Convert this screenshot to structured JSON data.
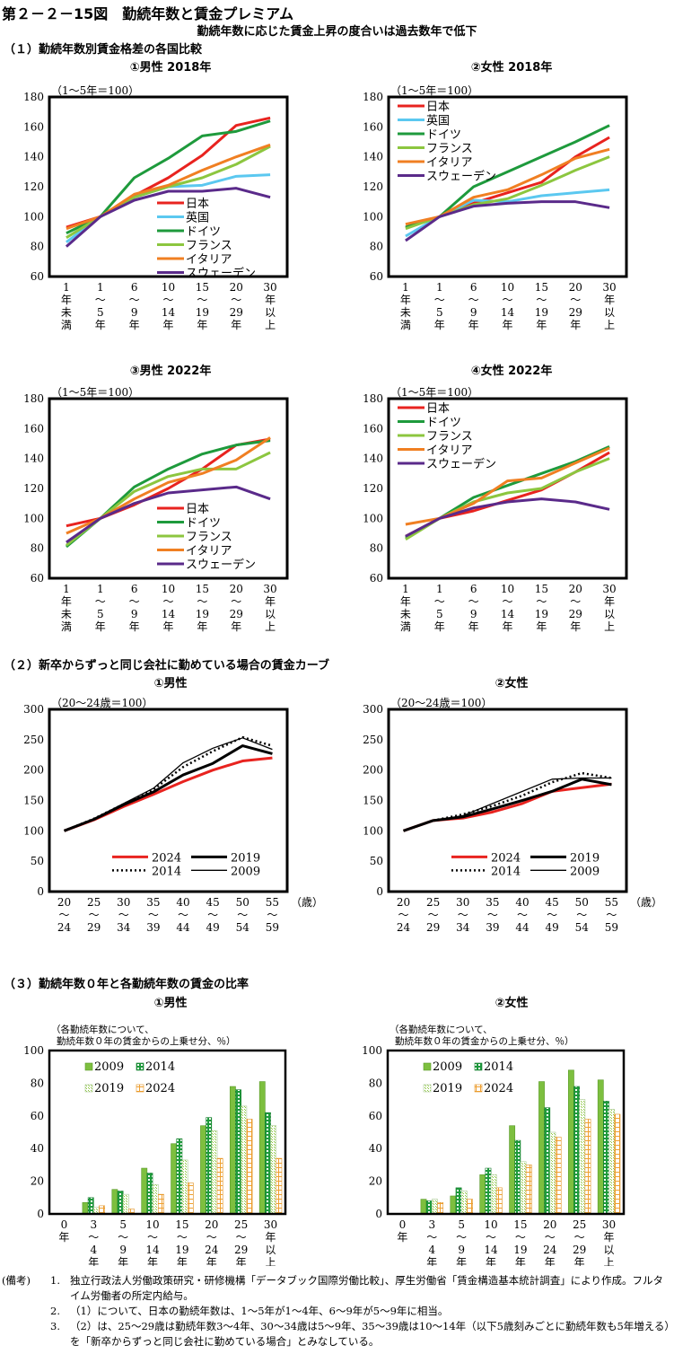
{
  "figure": {
    "title": "第２－２－15図　勤続年数と賃金プレミアム",
    "subtitle": "勤続年数に応じた賃金上昇の度合いは過去数年で低下"
  },
  "sections": {
    "s1": "（１）勤続年数別賃金格差の各国比較",
    "s2": "（２）新卒からずっと同じ会社に勤めている場合の賃金カーブ",
    "s3": "（３）勤続年数０年と各勤続年数の賃金の比率"
  },
  "notes": {
    "label": "(備考)",
    "items": [
      {
        "num": "1.",
        "text": "独立行政法人労働政策研究・研修機構「データブック国際労働比較」、厚生労働省「賃金構造基本統計調査」により作成。フルタイム労働者の所定内給与。"
      },
      {
        "num": "2.",
        "text": "（1）について、日本の勤続年数は、1～5年が1～4年、6～9年が5～9年に相当。"
      },
      {
        "num": "3.",
        "text": "（2）は、25～29歳は勤続年数3～4年、30～34歳は5～9年、35～39歳は10～14年（以下5歳刻みごとに勤続年数も5年増える）を「新卒からずっと同じ会社に勤めている場合」とみなしている。"
      }
    ]
  },
  "colors": {
    "japan": "#e8231f",
    "uk": "#5bc8f0",
    "germany": "#1e9a3c",
    "france": "#8cc63f",
    "italy": "#f07f22",
    "sweden": "#5a2a8a",
    "bar2009": "#7dbf3f",
    "bar2014": "#1e9a3c",
    "bar2019": "#c8e6a8",
    "bar2024": "#f0a030"
  },
  "chart_data": [
    {
      "id": "c1",
      "type": "line",
      "title": "①男性 2018年",
      "unit_label": "（1～5年＝100）",
      "ylim": [
        60,
        180
      ],
      "yticks": [
        "60",
        "80",
        "100",
        "120",
        "140",
        "160",
        "180"
      ],
      "categories": [
        [
          "1",
          "年",
          "未",
          "満"
        ],
        [
          "1",
          "～",
          "5",
          "年"
        ],
        [
          "6",
          "～",
          "9",
          "年"
        ],
        [
          "10",
          "～",
          "14",
          "年"
        ],
        [
          "15",
          "～",
          "19",
          "年"
        ],
        [
          "20",
          "～",
          "29",
          "年"
        ],
        [
          "30",
          "年",
          "以",
          "上"
        ]
      ],
      "legend_position": "lower-right",
      "series": [
        {
          "name": "日本",
          "color_key": "japan",
          "values": [
            93,
            100,
            114,
            126,
            141,
            161,
            166
          ]
        },
        {
          "name": "英国",
          "color_key": "uk",
          "values": [
            83,
            100,
            113,
            120,
            121,
            127,
            128
          ]
        },
        {
          "name": "ドイツ",
          "color_key": "germany",
          "values": [
            89,
            100,
            126,
            139,
            154,
            157,
            164
          ]
        },
        {
          "name": "フランス",
          "color_key": "france",
          "values": [
            86,
            100,
            113,
            120,
            126,
            135,
            147
          ]
        },
        {
          "name": "イタリア",
          "color_key": "italy",
          "values": [
            92,
            100,
            115,
            121,
            131,
            140,
            148
          ]
        },
        {
          "name": "スウェーデン",
          "color_key": "sweden",
          "values": [
            80,
            100,
            111,
            117,
            117,
            119,
            113
          ]
        }
      ]
    },
    {
      "id": "c2",
      "type": "line",
      "title": "②女性 2018年",
      "unit_label": "（1～5年＝100）",
      "ylim": [
        60,
        180
      ],
      "yticks": [
        "60",
        "80",
        "100",
        "120",
        "140",
        "160",
        "180"
      ],
      "categories": [
        [
          "1",
          "年",
          "未",
          "満"
        ],
        [
          "1",
          "～",
          "5",
          "年"
        ],
        [
          "6",
          "～",
          "9",
          "年"
        ],
        [
          "10",
          "～",
          "14",
          "年"
        ],
        [
          "15",
          "～",
          "19",
          "年"
        ],
        [
          "20",
          "～",
          "29",
          "年"
        ],
        [
          "30",
          "年",
          "以",
          "上"
        ]
      ],
      "legend_position": "top-left",
      "series": [
        {
          "name": "日本",
          "color_key": "japan",
          "values": [
            93,
            100,
            109,
            116,
            123,
            140,
            153
          ]
        },
        {
          "name": "英国",
          "color_key": "uk",
          "values": [
            87,
            100,
            111,
            110,
            114,
            116,
            118
          ]
        },
        {
          "name": "ドイツ",
          "color_key": "germany",
          "values": [
            93,
            100,
            120,
            130,
            140,
            150,
            161
          ]
        },
        {
          "name": "フランス",
          "color_key": "france",
          "values": [
            92,
            100,
            108,
            112,
            121,
            131,
            140
          ]
        },
        {
          "name": "イタリア",
          "color_key": "italy",
          "values": [
            95,
            100,
            113,
            118,
            128,
            139,
            145
          ]
        },
        {
          "name": "スウェーデン",
          "color_key": "sweden",
          "values": [
            84,
            100,
            107,
            109,
            110,
            110,
            106
          ]
        }
      ]
    },
    {
      "id": "c3",
      "type": "line",
      "title": "③男性 2022年",
      "unit_label": "（1～5年＝100）",
      "ylim": [
        60,
        180
      ],
      "yticks": [
        "60",
        "80",
        "100",
        "120",
        "140",
        "160",
        "180"
      ],
      "categories": [
        [
          "1",
          "年",
          "未",
          "満"
        ],
        [
          "1",
          "～",
          "5",
          "年"
        ],
        [
          "6",
          "～",
          "9",
          "年"
        ],
        [
          "10",
          "～",
          "14",
          "年"
        ],
        [
          "15",
          "～",
          "19",
          "年"
        ],
        [
          "20",
          "～",
          "29",
          "年"
        ],
        [
          "30",
          "年",
          "以",
          "上"
        ]
      ],
      "legend_position": "lower-right",
      "series": [
        {
          "name": "日本",
          "color_key": "japan",
          "values": [
            95,
            100,
            109,
            120,
            133,
            149,
            153
          ]
        },
        {
          "name": "ドイツ",
          "color_key": "germany",
          "values": [
            81,
            100,
            121,
            133,
            143,
            149,
            152
          ]
        },
        {
          "name": "フランス",
          "color_key": "france",
          "values": [
            82,
            100,
            118,
            128,
            133,
            133,
            144
          ]
        },
        {
          "name": "イタリア",
          "color_key": "italy",
          "values": [
            90,
            100,
            113,
            124,
            130,
            139,
            154
          ]
        },
        {
          "name": "スウェーデン",
          "color_key": "sweden",
          "values": [
            84,
            100,
            110,
            117,
            119,
            121,
            113
          ]
        }
      ]
    },
    {
      "id": "c4",
      "type": "line",
      "title": "④女性 2022年",
      "unit_label": "（1～5年＝100）",
      "ylim": [
        60,
        180
      ],
      "yticks": [
        "60",
        "80",
        "100",
        "120",
        "140",
        "160",
        "180"
      ],
      "categories": [
        [
          "1",
          "年",
          "未",
          "満"
        ],
        [
          "1",
          "～",
          "5",
          "年"
        ],
        [
          "6",
          "～",
          "9",
          "年"
        ],
        [
          "10",
          "～",
          "14",
          "年"
        ],
        [
          "15",
          "～",
          "19",
          "年"
        ],
        [
          "20",
          "～",
          "29",
          "年"
        ],
        [
          "30",
          "年",
          "以",
          "上"
        ]
      ],
      "legend_position": "top-left",
      "series": [
        {
          "name": "日本",
          "color_key": "japan",
          "values": [
            88,
            100,
            105,
            112,
            119,
            131,
            144
          ]
        },
        {
          "name": "ドイツ",
          "color_key": "germany",
          "values": [
            87,
            100,
            114,
            122,
            130,
            138,
            148
          ]
        },
        {
          "name": "フランス",
          "color_key": "france",
          "values": [
            86,
            100,
            111,
            117,
            120,
            131,
            140
          ]
        },
        {
          "name": "イタリア",
          "color_key": "italy",
          "values": [
            96,
            100,
            110,
            125,
            127,
            137,
            147
          ]
        },
        {
          "name": "スウェーデン",
          "color_key": "sweden",
          "values": [
            88,
            100,
            107,
            111,
            113,
            111,
            106
          ]
        }
      ]
    },
    {
      "id": "c5",
      "type": "line",
      "title": "①男性",
      "unit_label": "（20～24歳＝100）",
      "xunit": "（歳）",
      "ylim": [
        0,
        300
      ],
      "yticks": [
        "0",
        "50",
        "100",
        "150",
        "200",
        "250",
        "300"
      ],
      "categories": [
        [
          "20",
          "～",
          "24"
        ],
        [
          "25",
          "～",
          "29"
        ],
        [
          "30",
          "～",
          "34"
        ],
        [
          "35",
          "～",
          "39"
        ],
        [
          "40",
          "～",
          "44"
        ],
        [
          "45",
          "～",
          "49"
        ],
        [
          "50",
          "～",
          "54"
        ],
        [
          "55",
          "～",
          "59"
        ]
      ],
      "legend_position": "lower-center",
      "series": [
        {
          "name": "2024",
          "style": "red",
          "values": [
            100,
            118,
            140,
            160,
            181,
            200,
            215,
            220
          ]
        },
        {
          "name": "2019",
          "style": "thick",
          "values": [
            100,
            119,
            143,
            164,
            192,
            211,
            240,
            227
          ]
        },
        {
          "name": "2014",
          "style": "dotted",
          "values": [
            100,
            120,
            144,
            168,
            205,
            231,
            254,
            240
          ]
        },
        {
          "name": "2009",
          "style": "thin",
          "values": [
            100,
            120,
            145,
            170,
            212,
            236,
            253,
            234
          ]
        }
      ]
    },
    {
      "id": "c6",
      "type": "line",
      "title": "②女性",
      "unit_label": "（20～24歳＝100）",
      "xunit": "（歳）",
      "ylim": [
        0,
        300
      ],
      "yticks": [
        "0",
        "50",
        "100",
        "150",
        "200",
        "250",
        "300"
      ],
      "categories": [
        [
          "20",
          "～",
          "24"
        ],
        [
          "25",
          "～",
          "29"
        ],
        [
          "30",
          "～",
          "34"
        ],
        [
          "35",
          "～",
          "39"
        ],
        [
          "40",
          "～",
          "44"
        ],
        [
          "45",
          "～",
          "49"
        ],
        [
          "50",
          "～",
          "54"
        ],
        [
          "55",
          "～",
          "59"
        ]
      ],
      "legend_position": "lower-center",
      "series": [
        {
          "name": "2024",
          "style": "red",
          "values": [
            100,
            117,
            121,
            131,
            145,
            165,
            171,
            177
          ]
        },
        {
          "name": "2019",
          "style": "thick",
          "values": [
            100,
            117,
            123,
            136,
            150,
            165,
            185,
            176
          ]
        },
        {
          "name": "2014",
          "style": "dotted",
          "values": [
            100,
            117,
            127,
            141,
            158,
            180,
            195,
            187
          ]
        },
        {
          "name": "2009",
          "style": "thin",
          "values": [
            100,
            117,
            125,
            145,
            165,
            185,
            187,
            187
          ]
        }
      ]
    },
    {
      "id": "c7",
      "type": "bar",
      "title": "①男性",
      "unit_label": [
        "（各勤続年数について、",
        "勤続年数０年の賃金からの上乗せ分、％）"
      ],
      "ylim": [
        0,
        100
      ],
      "yticks": [
        "0",
        "20",
        "40",
        "60",
        "80",
        "100"
      ],
      "categories": [
        [
          "0",
          "年"
        ],
        [
          "3",
          "～",
          "4",
          "年"
        ],
        [
          "5",
          "～",
          "9",
          "年"
        ],
        [
          "10",
          "～",
          "14",
          "年"
        ],
        [
          "15",
          "～",
          "19",
          "年"
        ],
        [
          "20",
          "～",
          "24",
          "年"
        ],
        [
          "25",
          "～",
          "29",
          "年"
        ],
        [
          "30",
          "年",
          "以",
          "上"
        ]
      ],
      "legend_position": "top-left",
      "series": [
        {
          "name": "2009",
          "pattern": "solid2009",
          "values": [
            0,
            7,
            15,
            28,
            43,
            54,
            78,
            81
          ]
        },
        {
          "name": "2014",
          "pattern": "dots2014",
          "values": [
            0,
            10,
            14,
            25,
            46,
            59,
            76,
            62
          ]
        },
        {
          "name": "2019",
          "pattern": "light2019",
          "values": [
            0,
            4,
            12,
            18,
            33,
            51,
            66,
            54
          ]
        },
        {
          "name": "2024",
          "pattern": "grid2024",
          "values": [
            0,
            5,
            3,
            12,
            19,
            34,
            58,
            34
          ]
        }
      ]
    },
    {
      "id": "c8",
      "type": "bar",
      "title": "②女性",
      "unit_label": [
        "（各勤続年数について、",
        "勤続年数０年の賃金からの上乗せ分、％）"
      ],
      "ylim": [
        0,
        100
      ],
      "yticks": [
        "0",
        "20",
        "40",
        "60",
        "80",
        "100"
      ],
      "categories": [
        [
          "0",
          "年"
        ],
        [
          "3",
          "～",
          "4",
          "年"
        ],
        [
          "5",
          "～",
          "9",
          "年"
        ],
        [
          "10",
          "～",
          "14",
          "年"
        ],
        [
          "15",
          "～",
          "19",
          "年"
        ],
        [
          "20",
          "～",
          "24",
          "年"
        ],
        [
          "25",
          "～",
          "29",
          "年"
        ],
        [
          "30",
          "年",
          "以",
          "上"
        ]
      ],
      "legend_position": "top-left",
      "series": [
        {
          "name": "2009",
          "pattern": "solid2009",
          "values": [
            0,
            9,
            11,
            24,
            54,
            81,
            88,
            82
          ]
        },
        {
          "name": "2014",
          "pattern": "dots2014",
          "values": [
            0,
            8,
            16,
            28,
            45,
            65,
            78,
            69
          ]
        },
        {
          "name": "2019",
          "pattern": "light2019",
          "values": [
            0,
            9,
            14,
            24,
            32,
            50,
            70,
            64
          ]
        },
        {
          "name": "2024",
          "pattern": "grid2024",
          "values": [
            0,
            7,
            9,
            16,
            30,
            47,
            58,
            61
          ]
        }
      ]
    }
  ]
}
